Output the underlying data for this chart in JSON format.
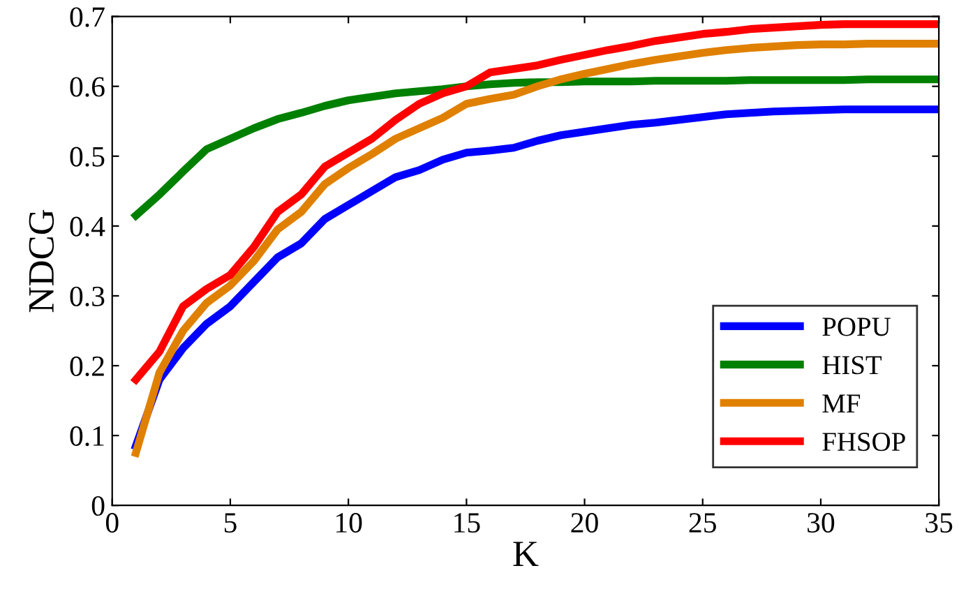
{
  "chart_data": {
    "type": "line",
    "xlabel": "K",
    "ylabel": "NDCG",
    "x": [
      1,
      2,
      3,
      4,
      5,
      6,
      7,
      8,
      9,
      10,
      11,
      12,
      13,
      14,
      15,
      16,
      17,
      18,
      19,
      20,
      21,
      22,
      23,
      24,
      25,
      26,
      27,
      28,
      29,
      30,
      31,
      32,
      33,
      34,
      35
    ],
    "series": [
      {
        "name": "POPU",
        "color": "#0000ff",
        "values": [
          0.085,
          0.18,
          0.225,
          0.26,
          0.285,
          0.32,
          0.355,
          0.375,
          0.41,
          0.43,
          0.45,
          0.47,
          0.48,
          0.495,
          0.505,
          0.508,
          0.512,
          0.522,
          0.53,
          0.535,
          0.54,
          0.545,
          0.548,
          0.552,
          0.556,
          0.56,
          0.562,
          0.564,
          0.565,
          0.566,
          0.567,
          0.567,
          0.567,
          0.567,
          0.567
        ]
      },
      {
        "name": "HIST",
        "color": "#008000",
        "values": [
          0.415,
          0.445,
          0.478,
          0.51,
          0.525,
          0.54,
          0.553,
          0.562,
          0.572,
          0.58,
          0.585,
          0.59,
          0.593,
          0.596,
          0.6,
          0.603,
          0.605,
          0.606,
          0.606,
          0.607,
          0.607,
          0.607,
          0.608,
          0.608,
          0.608,
          0.608,
          0.609,
          0.609,
          0.609,
          0.609,
          0.609,
          0.61,
          0.61,
          0.61,
          0.61
        ]
      },
      {
        "name": "MF",
        "color": "#e08000",
        "values": [
          0.075,
          0.19,
          0.25,
          0.29,
          0.315,
          0.35,
          0.395,
          0.42,
          0.46,
          0.483,
          0.503,
          0.525,
          0.54,
          0.555,
          0.575,
          0.582,
          0.588,
          0.6,
          0.61,
          0.618,
          0.625,
          0.632,
          0.638,
          0.643,
          0.648,
          0.652,
          0.655,
          0.657,
          0.659,
          0.66,
          0.66,
          0.661,
          0.661,
          0.661,
          0.661
        ]
      },
      {
        "name": "FHSOP",
        "color": "#ff0000",
        "values": [
          0.18,
          0.22,
          0.285,
          0.31,
          0.33,
          0.37,
          0.42,
          0.445,
          0.485,
          0.505,
          0.525,
          0.552,
          0.575,
          0.59,
          0.6,
          0.62,
          0.625,
          0.63,
          0.638,
          0.645,
          0.652,
          0.658,
          0.665,
          0.67,
          0.675,
          0.678,
          0.682,
          0.684,
          0.686,
          0.688,
          0.689,
          0.689,
          0.689,
          0.689,
          0.689
        ]
      }
    ],
    "xlim": [
      0,
      35
    ],
    "xticks": [
      0,
      5,
      10,
      15,
      20,
      25,
      30,
      35
    ],
    "ylim": [
      0,
      0.7
    ],
    "yticks": [
      0,
      0.1,
      0.2,
      0.3,
      0.4,
      0.5,
      0.6,
      0.7
    ],
    "legend": "lower right",
    "grid": false,
    "marker": "none",
    "line_style": "solid"
  }
}
